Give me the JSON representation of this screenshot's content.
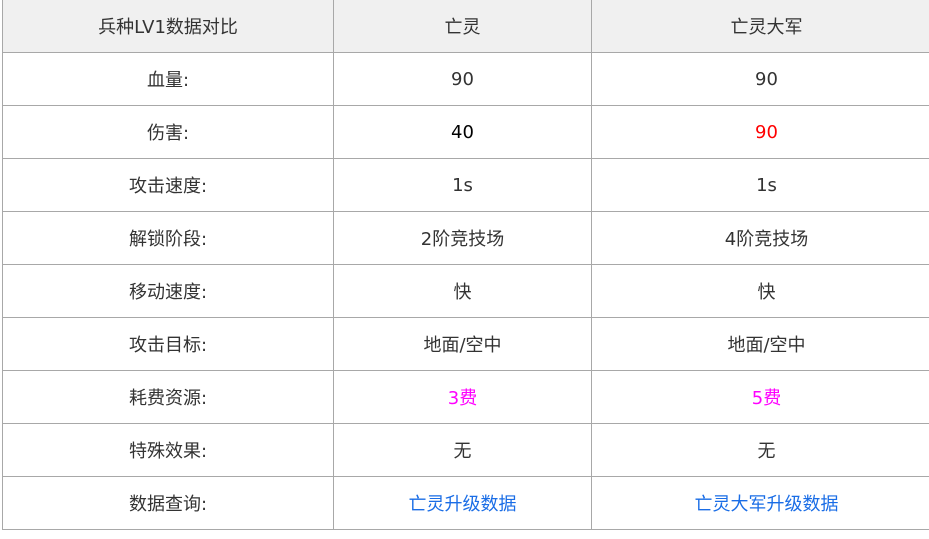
{
  "table": {
    "headers": [
      "兵种LV1数据对比",
      "亡灵",
      "亡灵大军"
    ],
    "rows": [
      {
        "label": "血量:",
        "a": "90",
        "b": "90"
      },
      {
        "label": "伤害:",
        "a": "40",
        "b": "90"
      },
      {
        "label": "攻击速度:",
        "a": "1s",
        "b": "1s"
      },
      {
        "label": "解锁阶段:",
        "a": "2阶竞技场",
        "b": "4阶竞技场"
      },
      {
        "label": "移动速度:",
        "a": "快",
        "b": "快"
      },
      {
        "label": "攻击目标:",
        "a": "地面/空中",
        "b": "地面/空中"
      },
      {
        "label": "耗费资源:",
        "a": "3费",
        "b": "5费"
      },
      {
        "label": "特殊效果:",
        "a": "无",
        "b": "无"
      },
      {
        "label": "数据查询:",
        "a": "亡灵升级数据",
        "b": "亡灵大军升级数据"
      }
    ]
  },
  "colors": {
    "highlight_red": "#ff0000",
    "cost_magenta": "#ff00ff",
    "link_blue": "#1a6de6",
    "header_bg": "#f0f0f0"
  }
}
